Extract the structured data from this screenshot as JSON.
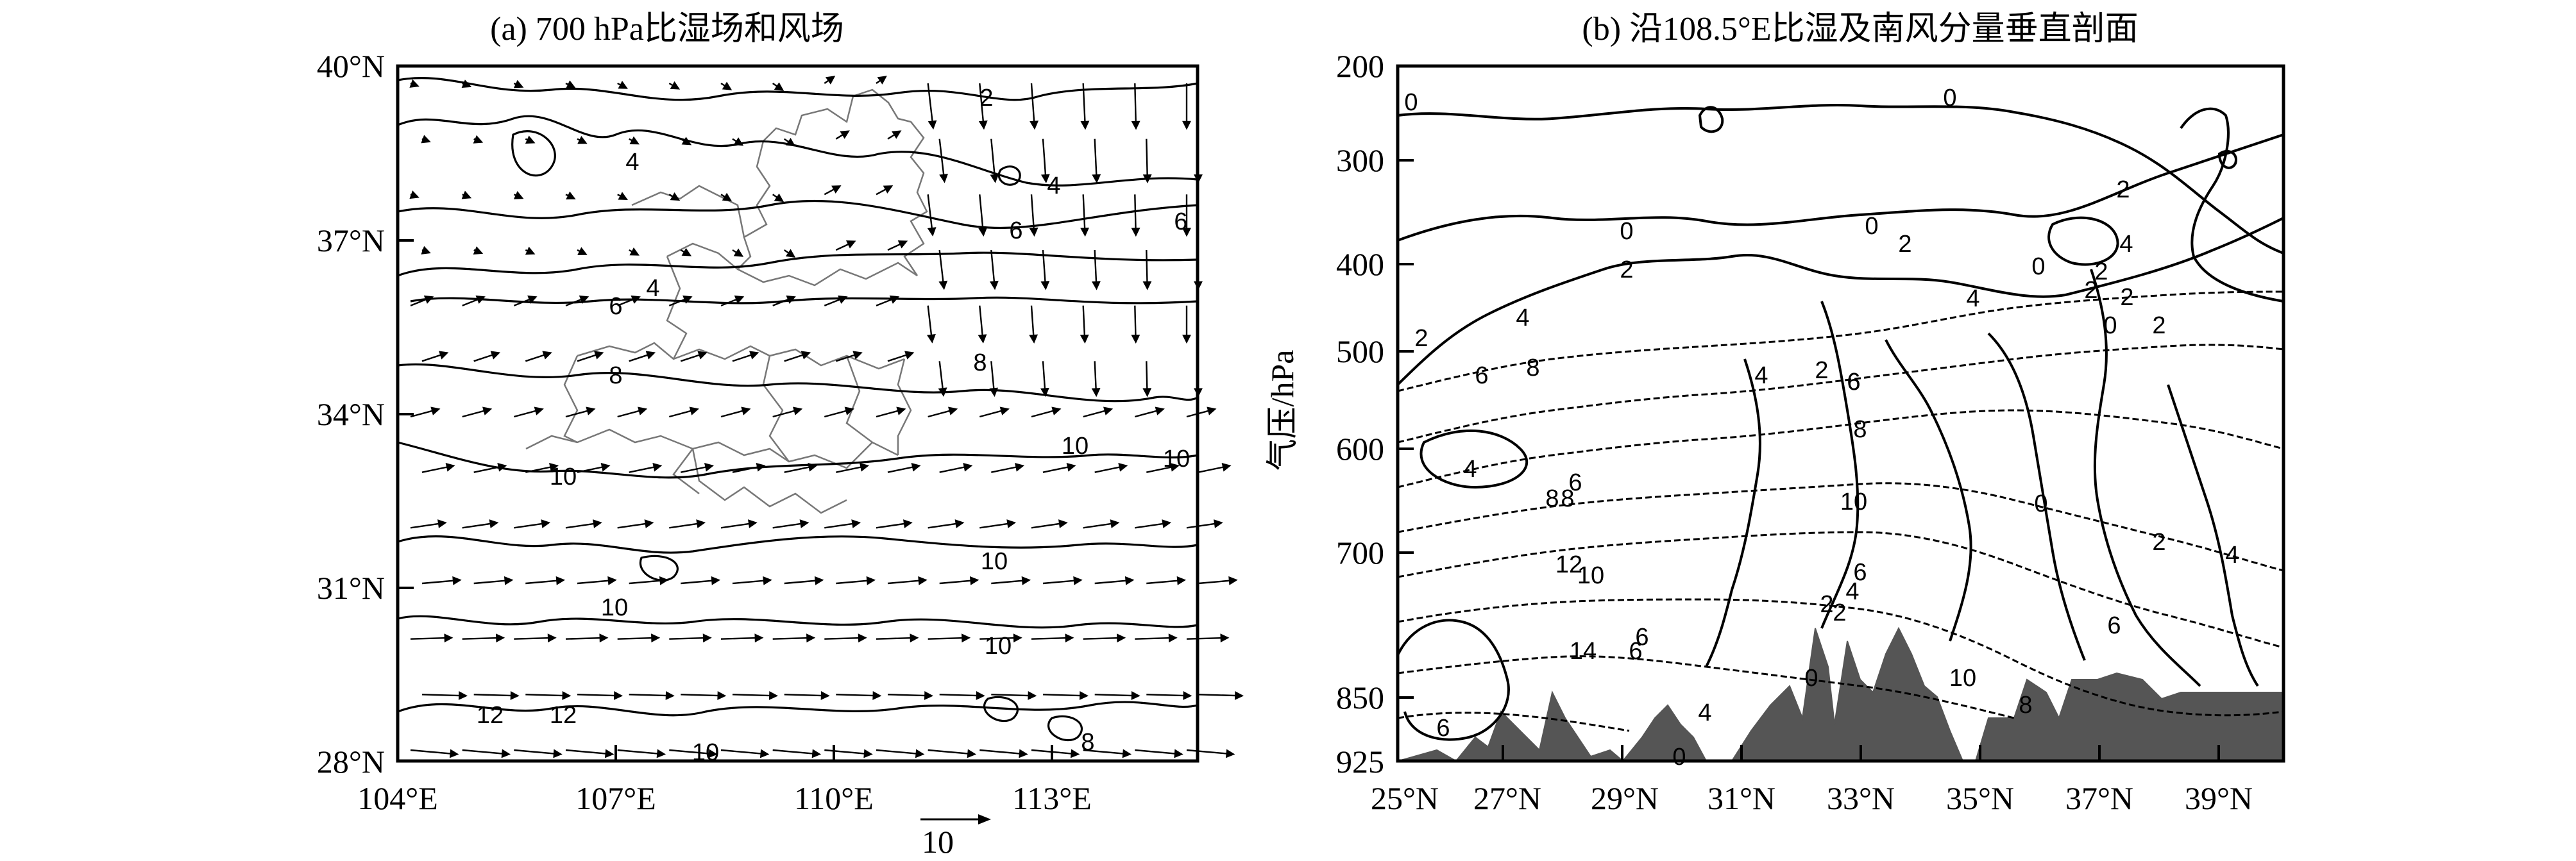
{
  "panel_a": {
    "title": "(a) 700 hPa比湿场和风场",
    "x_ticks": [
      "104°E",
      "107°E",
      "110°E",
      "113°E"
    ],
    "y_ticks": [
      "40°N",
      "37°N",
      "34°N",
      "31°N",
      "28°N"
    ],
    "contour_labels": [
      "2",
      "4",
      "4",
      "6",
      "6",
      "4",
      "6",
      "8",
      "8",
      "10",
      "10",
      "10",
      "10",
      "10",
      "10",
      "12",
      "12",
      "10",
      "8"
    ],
    "reference_vector_label": "10"
  },
  "panel_b": {
    "title": "(b) 沿108.5°E比湿及南风分量垂直剖面",
    "ylabel": "气压/hPa",
    "y_ticks": [
      "200",
      "300",
      "400",
      "500",
      "600",
      "700",
      "850",
      "925"
    ],
    "x_ticks": [
      "25°N",
      "27°N",
      "29°N",
      "31°N",
      "33°N",
      "35°N",
      "37°N",
      "39°N"
    ],
    "contour_labels": [
      "0",
      "0",
      "0",
      "0",
      "2",
      "2",
      "2",
      "4",
      "2",
      "2",
      "4",
      "2",
      "4",
      "6",
      "8",
      "6",
      "2",
      "0",
      "4",
      "6",
      "8",
      "8",
      "10",
      "12",
      "14",
      "6",
      "4",
      "6",
      "10",
      "6",
      "4",
      "2",
      "0",
      "0",
      "10",
      "8",
      "6",
      "2",
      "4",
      "6",
      "8",
      "2",
      "4",
      "6",
      "0",
      "2",
      "0",
      "2"
    ]
  },
  "chart_data": [
    {
      "type": "map",
      "title": "(a) 700 hPa比湿场和风场",
      "x_ticks": [
        "104°E",
        "107°E",
        "110°E",
        "113°E"
      ],
      "y_ticks": [
        "40°N",
        "37°N",
        "34°N",
        "31°N",
        "28°N"
      ],
      "xlim": [
        104,
        115
      ],
      "ylim": [
        28,
        40
      ],
      "contour_levels": [
        2,
        4,
        6,
        8,
        10,
        12
      ],
      "reference_vector": 10
    },
    {
      "type": "contour",
      "title": "(b) 沿108.5°E比湿及南风分量垂直剖面",
      "ylabel": "气压/hPa",
      "x_ticks": [
        "25°N",
        "27°N",
        "29°N",
        "31°N",
        "33°N",
        "35°N",
        "37°N",
        "39°N"
      ],
      "y_ticks": [
        "200",
        "300",
        "400",
        "500",
        "600",
        "700",
        "850",
        "925"
      ],
      "xlim": [
        25,
        40
      ],
      "ylim": [
        925,
        200
      ],
      "contour_levels": [
        0,
        2,
        4,
        6,
        8,
        10,
        12,
        14
      ]
    }
  ]
}
